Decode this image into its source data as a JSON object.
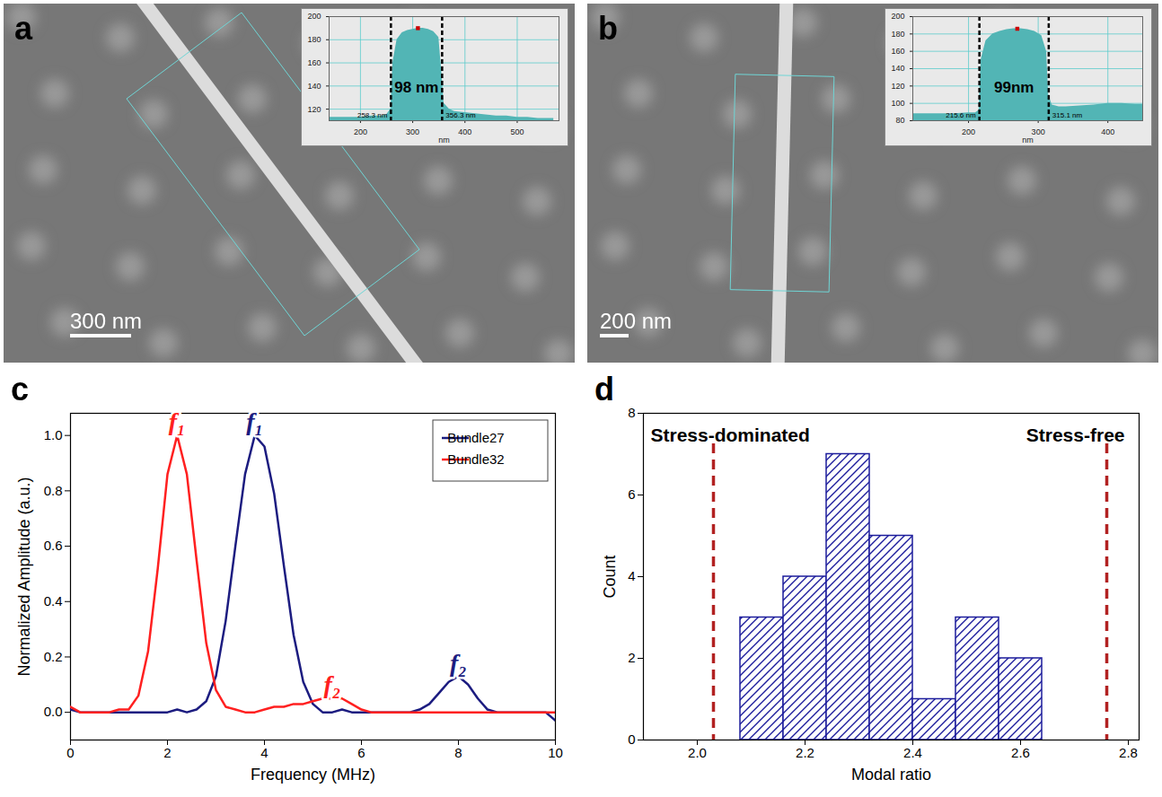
{
  "chart_data": [
    {
      "type": "area",
      "panel_label": "a",
      "scale_bar": "300 nm",
      "x": [
        140,
        160,
        180,
        200,
        220,
        240,
        250,
        258,
        262,
        270,
        280,
        290,
        300,
        310,
        320,
        330,
        340,
        350,
        356,
        360,
        370,
        380,
        400,
        420,
        440,
        460,
        480,
        500,
        520,
        540,
        560,
        570
      ],
      "values": [
        113,
        113,
        113,
        113,
        114,
        114,
        115,
        120,
        160,
        180,
        186,
        188,
        189,
        190,
        190,
        189,
        187,
        182,
        150,
        125,
        120,
        118,
        117,
        116,
        115,
        114,
        114,
        113,
        113,
        112,
        112,
        112
      ],
      "color": "#52b5b5",
      "xlim": [
        140,
        580
      ],
      "ylim": [
        110,
        200
      ],
      "xticks": [
        200,
        300,
        400,
        500
      ],
      "yticks": [
        120,
        140,
        160,
        180,
        200
      ],
      "xlabel": "nm",
      "grid": true,
      "cursors": [
        {
          "x": 258.3,
          "label": "258.3 nm"
        },
        {
          "x": 356.3,
          "label": "356.3 nm"
        }
      ],
      "width_label": "98 nm",
      "peak": {
        "x": 310,
        "y": 190
      }
    },
    {
      "type": "area",
      "panel_label": "b",
      "scale_bar": "200 nm",
      "x": [
        120,
        140,
        160,
        180,
        200,
        210,
        215,
        218,
        225,
        235,
        245,
        255,
        265,
        275,
        285,
        295,
        305,
        312,
        315,
        320,
        330,
        340,
        360,
        380,
        400,
        420,
        440,
        450
      ],
      "values": [
        88,
        88,
        88,
        88,
        89,
        89,
        92,
        150,
        172,
        180,
        183,
        185,
        186,
        186,
        185,
        183,
        178,
        160,
        110,
        98,
        96,
        96,
        97,
        98,
        100,
        100,
        99,
        99
      ],
      "color": "#52b5b5",
      "xlim": [
        120,
        450
      ],
      "ylim": [
        80,
        200
      ],
      "xticks": [
        200,
        300,
        400
      ],
      "yticks": [
        80,
        100,
        120,
        140,
        160,
        180,
        200
      ],
      "xlabel": "nm",
      "grid": true,
      "cursors": [
        {
          "x": 215.6,
          "label": "215.6 nm"
        },
        {
          "x": 315.1,
          "label": "315.1 nm"
        }
      ],
      "width_label": "99nm",
      "peak": {
        "x": 270,
        "y": 186
      }
    },
    {
      "type": "line",
      "panel_label": "c",
      "x": [
        0,
        0.2,
        0.4,
        0.6,
        0.8,
        1,
        1.2,
        1.4,
        1.6,
        1.8,
        2,
        2.2,
        2.4,
        2.6,
        2.8,
        3,
        3.2,
        3.4,
        3.6,
        3.8,
        4,
        4.2,
        4.4,
        4.6,
        4.8,
        5,
        5.2,
        5.4,
        5.6,
        5.8,
        6,
        6.2,
        6.4,
        6.6,
        6.8,
        7,
        7.2,
        7.4,
        7.6,
        7.8,
        8,
        8.2,
        8.4,
        8.6,
        8.8,
        9,
        9.2,
        9.4,
        9.6,
        9.8,
        10
      ],
      "series": [
        {
          "name": "Bundle27",
          "color": "#1c1c80",
          "values": [
            0.01,
            0,
            0,
            0,
            0,
            0,
            0,
            0,
            0,
            0,
            0,
            0.01,
            0,
            0.01,
            0.04,
            0.13,
            0.33,
            0.6,
            0.86,
            1.0,
            0.96,
            0.79,
            0.53,
            0.28,
            0.11,
            0.03,
            0,
            0,
            0.01,
            0,
            0,
            0,
            0,
            0,
            0,
            0,
            0.01,
            0.03,
            0.07,
            0.11,
            0.13,
            0.1,
            0.05,
            0.01,
            0,
            0,
            0,
            0,
            0,
            0,
            -0.03
          ]
        },
        {
          "name": "Bundle32",
          "color": "#ff2020",
          "values": [
            0.02,
            0,
            0,
            0,
            0,
            0.01,
            0.01,
            0.06,
            0.22,
            0.52,
            0.86,
            1.0,
            0.86,
            0.55,
            0.25,
            0.08,
            0.02,
            0.01,
            0,
            0,
            0.01,
            0.02,
            0.02,
            0.03,
            0.03,
            0.04,
            0.05,
            0.05,
            0.05,
            0.03,
            0.01,
            0,
            0,
            0,
            0,
            0,
            0,
            0,
            0,
            0,
            0,
            0,
            0,
            0,
            0,
            0,
            0,
            0,
            0,
            0,
            0
          ]
        }
      ],
      "xlim": [
        0,
        10
      ],
      "ylim": [
        -0.1,
        1.08
      ],
      "xticks": [
        0,
        2,
        4,
        6,
        8,
        10
      ],
      "yticks": [
        {
          "value": 0,
          "label": "0.0"
        },
        {
          "value": 0.2,
          "label": "0.2"
        },
        {
          "value": 0.4,
          "label": "0.4"
        },
        {
          "value": 0.6,
          "label": "0.6"
        },
        {
          "value": 0.8,
          "label": "0.8"
        },
        {
          "value": 1,
          "label": "1.0"
        }
      ],
      "xlabel": "Frequency (MHz)",
      "ylabel": "Normalized Amplitude (a.u.)",
      "legend": "top-right",
      "annotations": [
        {
          "x": 2.2,
          "y": 1.0,
          "text": "f₁",
          "color": "#ff2020"
        },
        {
          "x": 3.8,
          "y": 1.0,
          "text": "f₁",
          "color": "#1c1c80"
        },
        {
          "x": 5.4,
          "y": 0.05,
          "text": "f₂",
          "color": "#ff2020"
        },
        {
          "x": 8.0,
          "y": 0.13,
          "text": "f₂",
          "color": "#1c1c80"
        }
      ]
    },
    {
      "type": "histogram",
      "panel_label": "d",
      "bins": [
        2.08,
        2.16,
        2.24,
        2.32,
        2.4,
        2.48,
        2.56,
        2.64
      ],
      "counts": [
        3,
        4,
        7,
        5,
        1,
        3,
        2
      ],
      "color": "#1c1c9c",
      "xlim": [
        1.9,
        2.82
      ],
      "ylim": [
        0,
        8
      ],
      "xticks": [
        {
          "value": 2.0,
          "label": "2.0"
        },
        2.2,
        2.4,
        2.6,
        2.8
      ],
      "yticks": [
        0,
        2,
        4,
        6,
        8
      ],
      "xlabel": "Modal ratio",
      "ylabel": "Count",
      "annotations": [
        {
          "x": 2.03,
          "text": "Stress-dominated",
          "color": "#b22222",
          "line_style": "dashed"
        },
        {
          "x": 2.76,
          "text": "Stress-free",
          "color": "#b22222",
          "line_style": "dashed"
        }
      ]
    }
  ]
}
